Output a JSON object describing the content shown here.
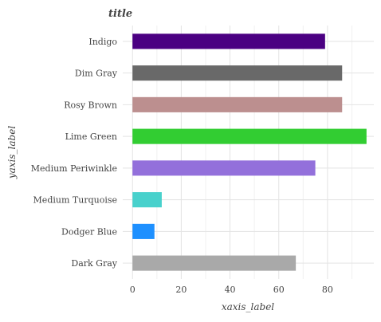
{
  "chart_data": {
    "type": "bar",
    "orientation": "horizontal",
    "title": "title",
    "xlabel": "xaxis_label",
    "ylabel": "yaxis_label",
    "xlim": [
      -4,
      99
    ],
    "xticks": [
      0,
      20,
      40,
      60,
      80
    ],
    "grid": true,
    "categories": [
      "Dark Gray",
      "Dodger Blue",
      "Medium Turquoise",
      "Medium Periwinkle",
      "Lime Green",
      "Rosy Brown",
      "Dim Gray",
      "Indigo"
    ],
    "values": [
      67,
      9,
      12,
      75,
      96,
      86,
      86,
      79
    ],
    "colors": [
      "#a9a9a9",
      "#1e90ff",
      "#48d1cc",
      "#9370db",
      "#32cd32",
      "#bc8f8f",
      "#696969",
      "#4b0082"
    ]
  }
}
